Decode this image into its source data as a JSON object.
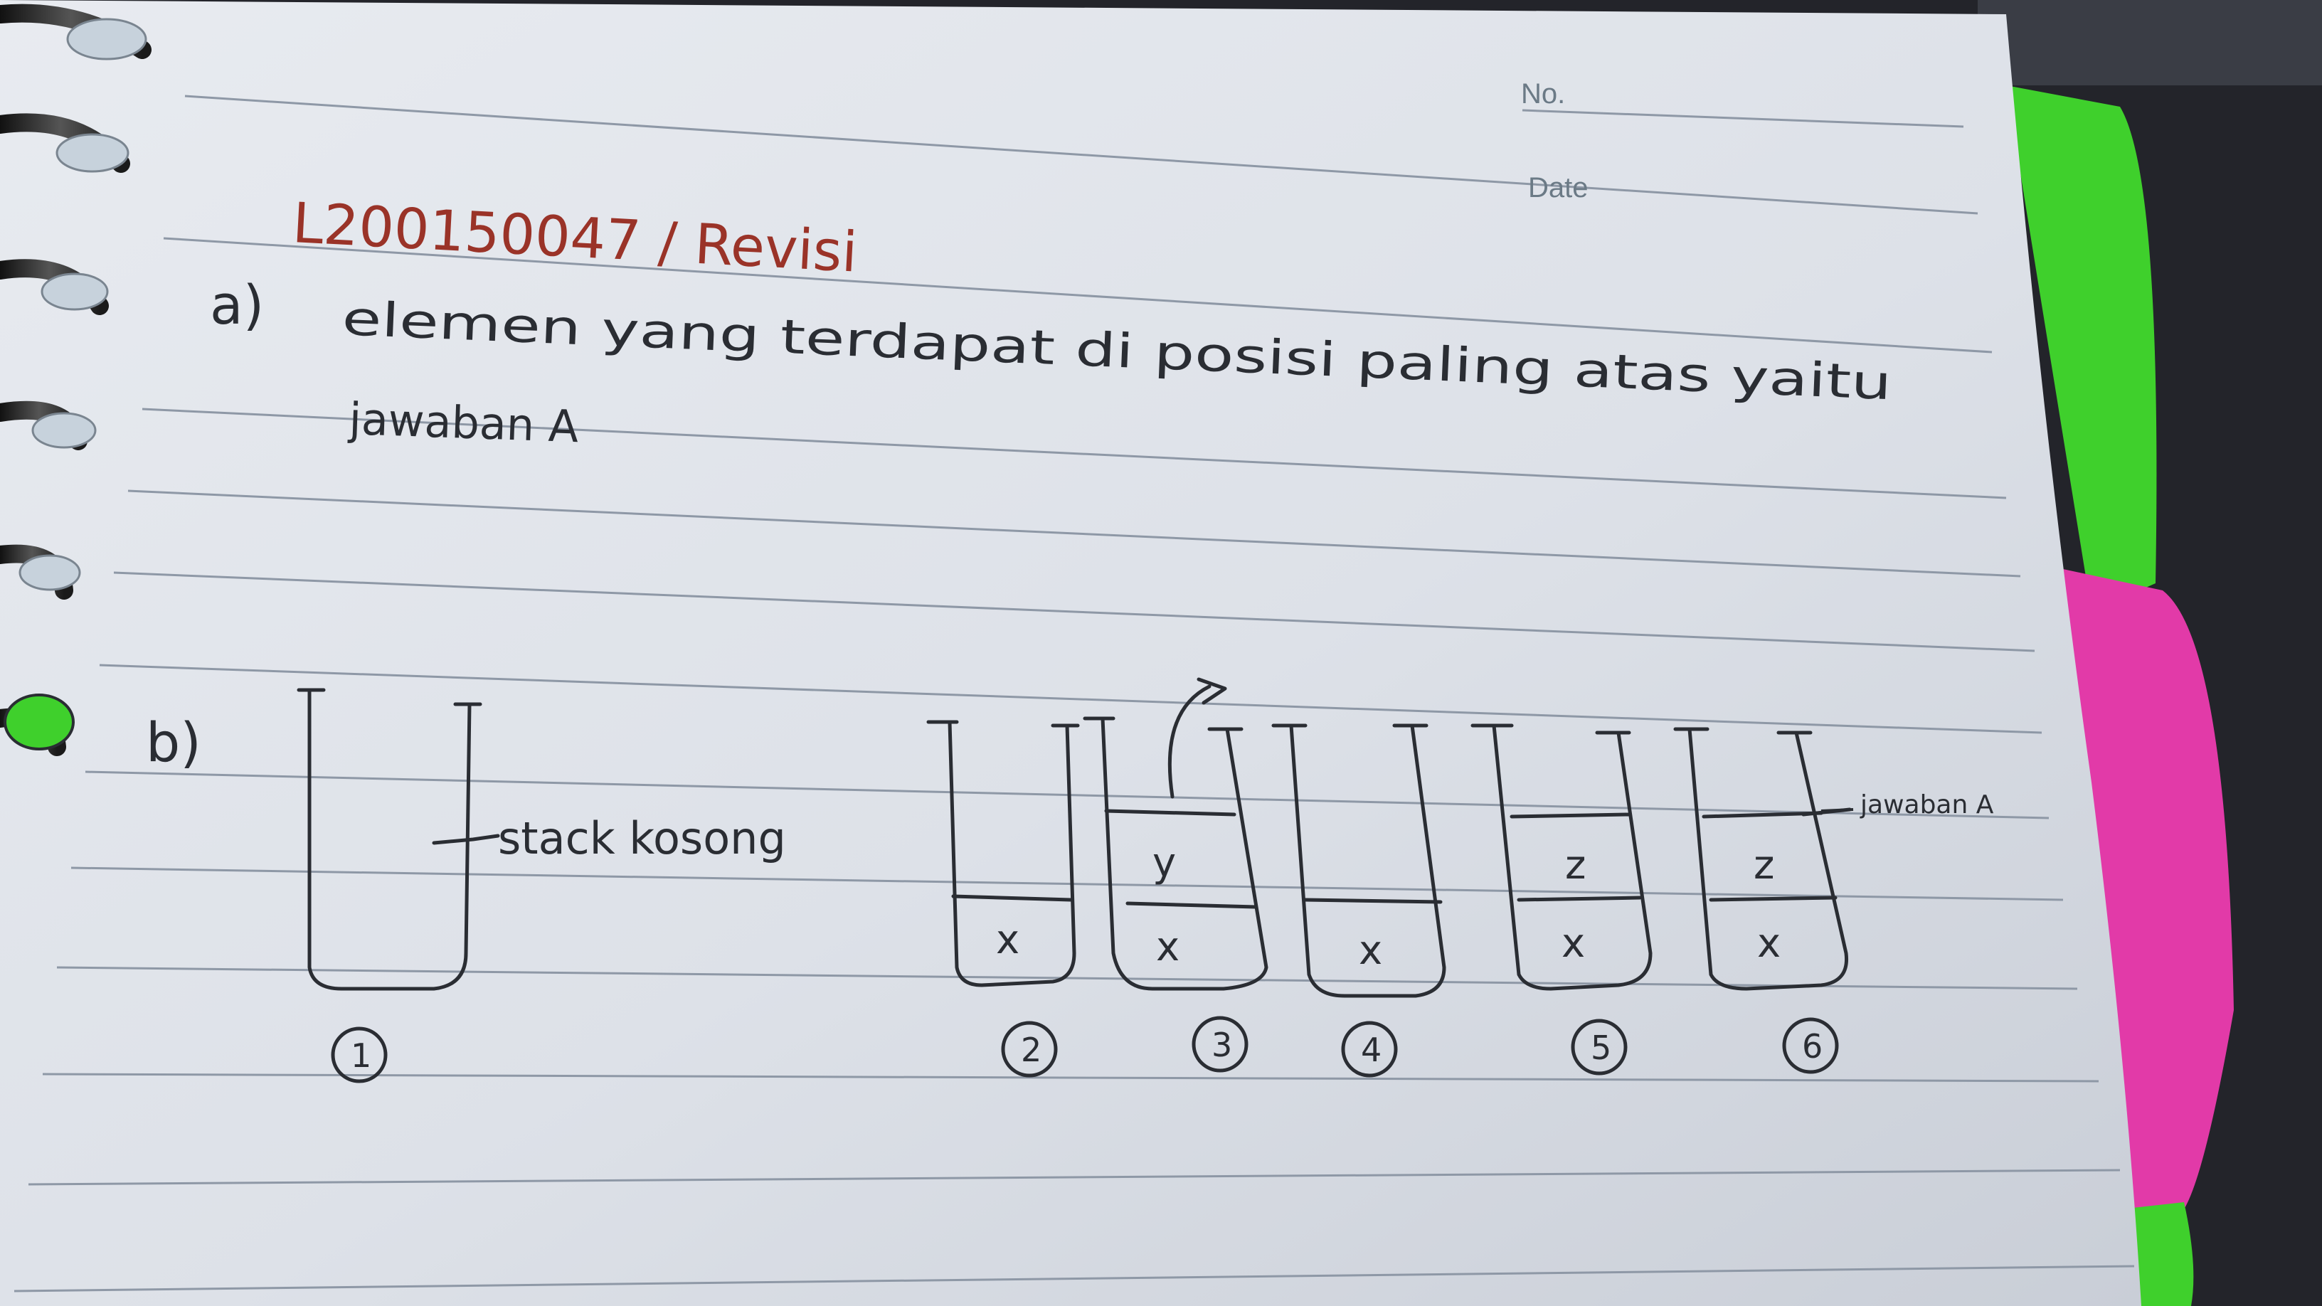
{
  "header": {
    "no_label": "No.",
    "date_label": "Date"
  },
  "title": "L200150047 / Revisi",
  "part_a": {
    "marker": "a)",
    "line1": "elemen yang terdapat di posisi paling atas yaitu",
    "line2": "jawaban A"
  },
  "part_b": {
    "marker": "b)",
    "empty_stack_note": "stack kosong",
    "answer_note": "jawaban A",
    "stacks": [
      {
        "number": "1",
        "items": []
      },
      {
        "number": "2",
        "items": [
          "x"
        ]
      },
      {
        "number": "3",
        "items": [
          "x",
          "y"
        ]
      },
      {
        "number": "4",
        "items": [
          "x"
        ]
      },
      {
        "number": "5",
        "items": [
          "x",
          "z"
        ]
      },
      {
        "number": "6",
        "items": [
          "x",
          "z"
        ]
      }
    ]
  },
  "colors": {
    "paper": "#dfe3ea",
    "ink": "#2a2d33",
    "red_ink": "#9a3328",
    "tab_green": "#3fd02c",
    "tab_pink": "#e23aa8"
  }
}
